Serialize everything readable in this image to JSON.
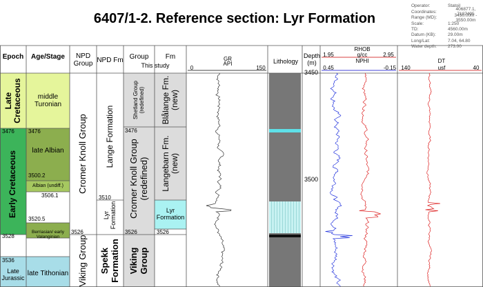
{
  "header": {
    "title": "6407/1-2. Reference section: Lyr Formation",
    "info": [
      {
        "label": "Operator:",
        "value": "Statoil"
      },
      {
        "label": "Coordinates:",
        "value": "406877.1, 7187495"
      },
      {
        "label": "Range (MD):",
        "value": "3450.00m - 3550.00m"
      },
      {
        "label": "Scale:",
        "value": "1:250"
      },
      {
        "label": "TD:",
        "value": "4560.00m"
      },
      {
        "label": "Datum (KB):",
        "value": "29.00m"
      },
      {
        "label": "Long/Lat:",
        "value": "7.04, 64.80"
      },
      {
        "label": "Water depth:",
        "value": "273.00"
      }
    ]
  },
  "columns": {
    "epoch": "Epoch",
    "age": "Age/Stage",
    "npd_group": "NPD Group",
    "npd_fm": "NPD Fm",
    "group": "Group",
    "fm": "Fm",
    "this_study": "This study",
    "gr": {
      "name": "GR",
      "min": "0",
      "unit": "API",
      "max": "150"
    },
    "lithology": "Lithology",
    "depth": "Depth (m)",
    "rhob": {
      "name": "RHOB",
      "min": "1.95",
      "unit": "g/cc",
      "max": "2.95"
    },
    "nphi": {
      "name": "NPHI",
      "min": "0.45",
      "max": "-0.15"
    },
    "dt": {
      "name": "DT",
      "min": "140",
      "unit": "usf",
      "max": "40"
    }
  },
  "depth_ticks": [
    "3450",
    "3500"
  ],
  "epochs": {
    "late_cretaceous": "Late Cretaceous",
    "early_cretaceous": "Early Cretaceous",
    "late_jurassic": "Late Jurassic",
    "tops": [
      "3476",
      "3528",
      "3536"
    ]
  },
  "ages": {
    "turonian": "middle Turonian",
    "late_albian": "late Albian",
    "albian_undiff": "Albian (undiff.)",
    "berriasian": "Berriasian/ early Valanginian",
    "tithonian": "late Tithonian",
    "tops": [
      "3476",
      "3500.2",
      "3506.1",
      "3520.5"
    ]
  },
  "npd_groups": [
    "Cromer Knoll Group",
    "Viking Group"
  ],
  "npd_fms": {
    "names": [
      "Lange Formation",
      "Lyr Formation",
      "Spekk Formation"
    ],
    "tops": [
      "3510",
      "3526"
    ]
  },
  "groups": {
    "names": [
      "Shetland Group (redefined)",
      "Cromer Knoll Group (redefined)",
      "Viking Group"
    ],
    "tops": [
      "3476",
      "3526"
    ]
  },
  "fms": {
    "names": [
      "Blålange Fm. (new)",
      "Langebarn Fm. (new)",
      "Lyr Formation"
    ],
    "tops": [
      "3526"
    ]
  }
}
